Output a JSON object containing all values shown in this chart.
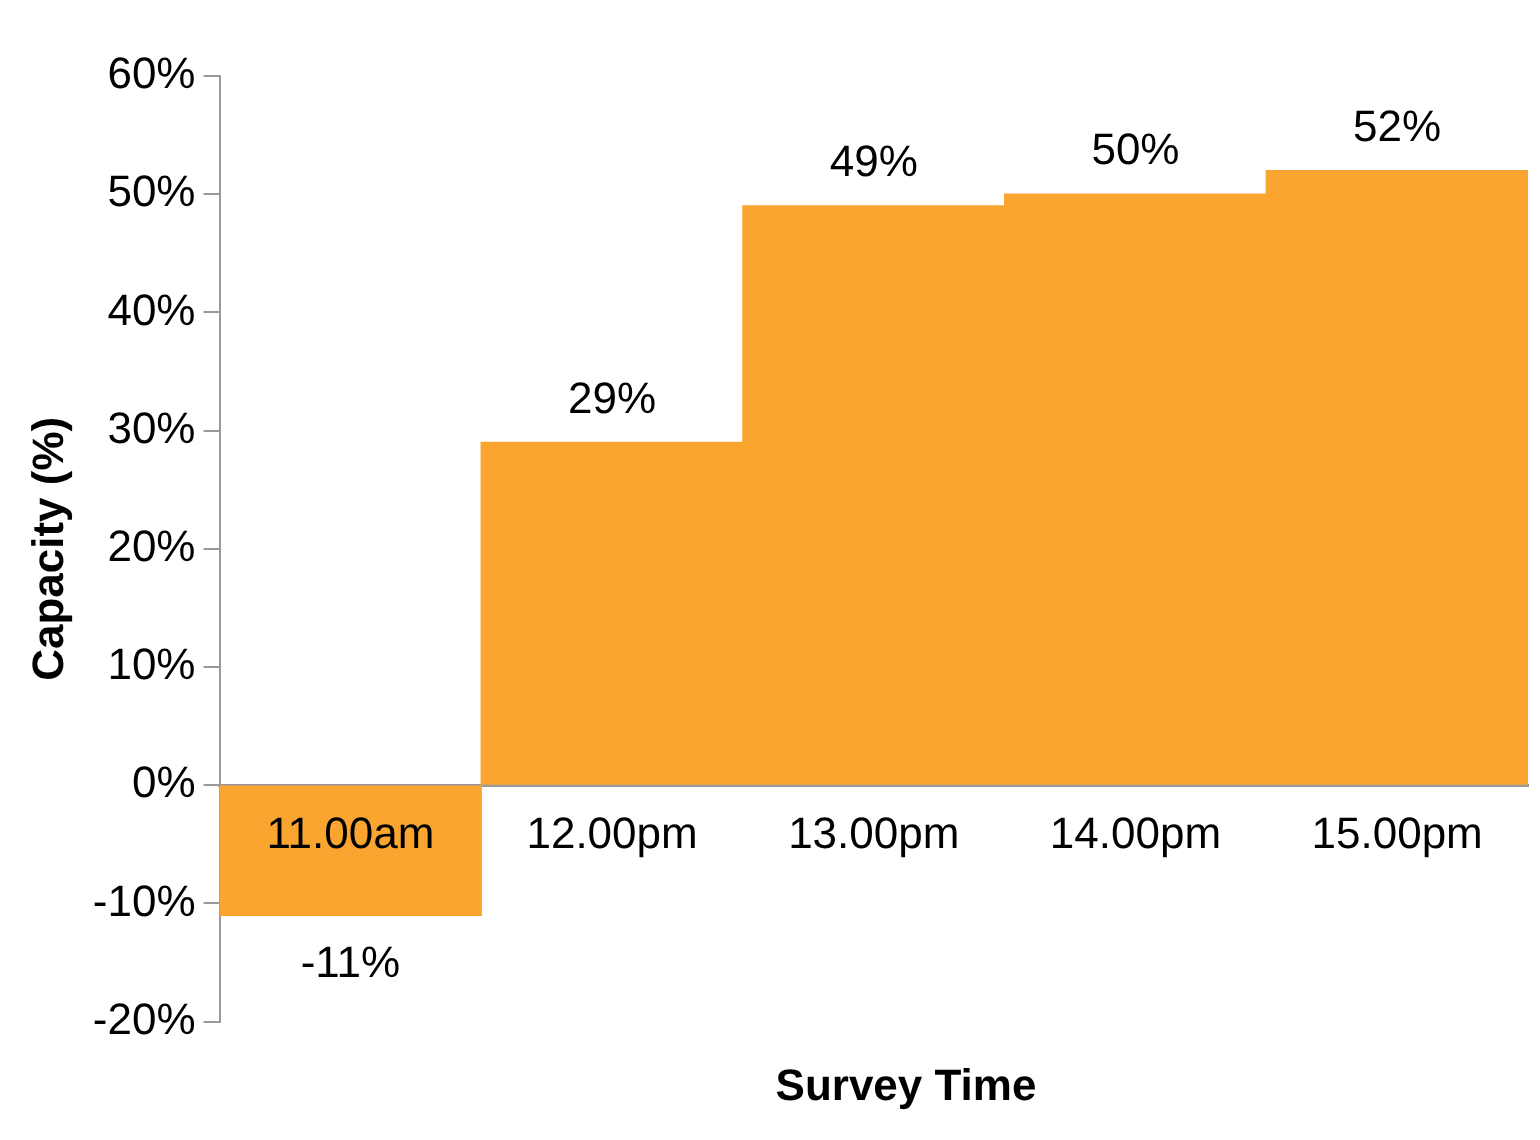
{
  "chart_data": {
    "type": "bar",
    "xlabel": "Survey Time",
    "ylabel": "Capacity (%)",
    "categories": [
      "11.00am",
      "12.00pm",
      "13.00pm",
      "14.00pm",
      "15.00pm"
    ],
    "values": [
      -11,
      29,
      49,
      50,
      52
    ],
    "value_labels": [
      "-11%",
      "29%",
      "49%",
      "50%",
      "52%"
    ],
    "color": "#f9a52f",
    "ylim": [
      -20,
      60
    ],
    "yticks": [
      {
        "value": -20,
        "label": "-20%"
      },
      {
        "value": -10,
        "label": "-10%"
      },
      {
        "value": 0,
        "label": "0%"
      },
      {
        "value": 10,
        "label": "10%"
      },
      {
        "value": 20,
        "label": "20%"
      },
      {
        "value": 30,
        "label": "30%"
      },
      {
        "value": 40,
        "label": "40%"
      },
      {
        "value": 50,
        "label": "50%"
      },
      {
        "value": 60,
        "label": "60%"
      }
    ],
    "grid": false,
    "legend": false
  }
}
